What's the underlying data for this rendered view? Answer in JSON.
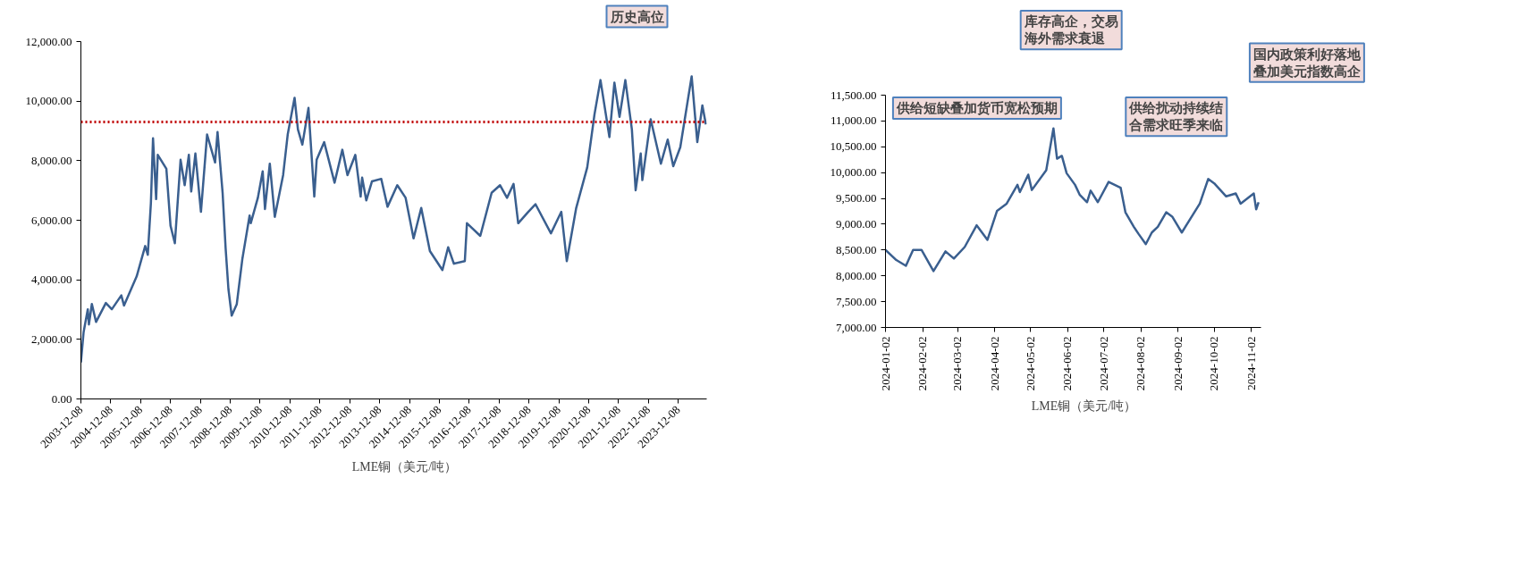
{
  "chart_data": [
    {
      "type": "line",
      "legend": "bottom",
      "grid": false,
      "line_style": "solid",
      "x": [
        "2003-12-08",
        "2004-01-10",
        "2004-03-01",
        "2004-03-15",
        "2004-04-20",
        "2004-06-10",
        "2004-10-08",
        "2004-12-20",
        "2005-04-15",
        "2005-05-18",
        "2005-10-20",
        "2006-02-01",
        "2006-03-05",
        "2006-04-12",
        "2006-05-08",
        "2006-06-15",
        "2006-07-05",
        "2006-10-18",
        "2006-12-08",
        "2007-01-30",
        "2007-04-10",
        "2007-05-30",
        "2007-07-20",
        "2007-08-18",
        "2007-10-08",
        "2007-12-15",
        "2008-02-28",
        "2008-06-05",
        "2008-07-05",
        "2008-09-05",
        "2008-10-12",
        "2008-11-15",
        "2008-12-25",
        "2009-02-25",
        "2009-05-05",
        "2009-08-01",
        "2009-08-15",
        "2009-11-10",
        "2010-01-08",
        "2010-02-05",
        "2010-04-05",
        "2010-06-05",
        "2010-09-15",
        "2010-11-10",
        "2011-02-02",
        "2011-03-15",
        "2011-05-08",
        "2011-07-22",
        "2011-10-01",
        "2011-10-30",
        "2012-01-30",
        "2012-06-05",
        "2012-09-08",
        "2012-11-10",
        "2013-02-14",
        "2013-04-20",
        "2013-05-08",
        "2013-06-28",
        "2013-09-05",
        "2013-12-28",
        "2014-03-15",
        "2014-07-12",
        "2014-10-22",
        "2015-01-27",
        "2015-05-01",
        "2015-08-15",
        "2016-01-15",
        "2016-03-25",
        "2016-06-03",
        "2016-10-15",
        "2016-11-10",
        "2017-04-22",
        "2017-09-08",
        "2017-12-20",
        "2018-03-15",
        "2018-06-03",
        "2018-07-30",
        "2018-11-30",
        "2019-02-26",
        "2019-09-03",
        "2020-01-08",
        "2020-03-15",
        "2020-07-08",
        "2020-11-20",
        "2021-02-17",
        "2021-05-01",
        "2021-08-18",
        "2021-10-18",
        "2021-12-20",
        "2022-03-01",
        "2022-05-20",
        "2022-07-05",
        "2022-09-05",
        "2022-09-25",
        "2023-01-05",
        "2023-05-10",
        "2023-08-01",
        "2023-10-08",
        "2024-01-02",
        "2024-05-20",
        "2024-07-28",
        "2024-09-28",
        "2024-11-10"
      ],
      "series": [
        {
          "name": "LME铜（美元/吨）",
          "color": "#3a5f8f",
          "values": [
            1224,
            2245,
            3010,
            2500,
            3190,
            2585,
            3222,
            3010,
            3477,
            3138,
            4115,
            5135,
            4840,
            6580,
            8750,
            6710,
            8196,
            7730,
            5816,
            5230,
            8030,
            7176,
            8196,
            6964,
            8240,
            6283,
            8878,
            7941,
            8963,
            6921,
            5051,
            3690,
            2798,
            3181,
            4711,
            6156,
            5900,
            6752,
            7645,
            6378,
            7900,
            6114,
            7517,
            8878,
            10110,
            9048,
            8538,
            9770,
            6794,
            8030,
            8622,
            7262,
            8367,
            7517,
            8196,
            6794,
            7432,
            6666,
            7304,
            7390,
            6454,
            7176,
            6752,
            5390,
            6411,
            4966,
            4328,
            5093,
            4541,
            4626,
            5900,
            5475,
            6921,
            7176,
            6752,
            7219,
            5900,
            6283,
            6539,
            5560,
            6283,
            4626,
            6411,
            7772,
            9558,
            10706,
            8793,
            10620,
            9473,
            10706,
            9048,
            7007,
            8240,
            7347,
            9388,
            7900,
            8707,
            7815,
            8452,
            10833,
            8622,
            9855,
            9218
          ]
        }
      ],
      "xlim": [
        "2003-12-08",
        "2024-11-20"
      ],
      "xticks": [
        "2003-12-08",
        "2004-12-08",
        "2005-12-08",
        "2006-12-08",
        "2007-12-08",
        "2008-12-08",
        "2009-12-08",
        "2010-12-08",
        "2011-12-08",
        "2012-12-08",
        "2013-12-08",
        "2014-12-08",
        "2015-12-08",
        "2016-12-08",
        "2017-12-08",
        "2018-12-08",
        "2019-12-08",
        "2020-12-08",
        "2021-12-08",
        "2022-12-08",
        "2023-12-08"
      ],
      "ylim": [
        0,
        12000
      ],
      "yticks": [
        {
          "value": 0,
          "label": "0.00"
        },
        {
          "value": 2000,
          "label": "2,000.00"
        },
        {
          "value": 4000,
          "label": "4,000.00"
        },
        {
          "value": 6000,
          "label": "6,000.00"
        },
        {
          "value": 8000,
          "label": "8,000.00"
        },
        {
          "value": 10000,
          "label": "10,000.00"
        },
        {
          "value": 12000,
          "label": "12,000.00"
        }
      ],
      "ref_lines": [
        {
          "axis": "y",
          "value": 9300,
          "color": "#c00000",
          "line_style": "dotted"
        }
      ],
      "annotations": [
        "历史高位"
      ]
    },
    {
      "type": "line",
      "legend": "bottom",
      "grid": false,
      "line_style": "solid",
      "x": [
        "2024-01-02",
        "2024-01-11",
        "2024-01-19",
        "2024-01-25",
        "2024-02-01",
        "2024-02-11",
        "2024-02-21",
        "2024-02-28",
        "2024-03-08",
        "2024-03-18",
        "2024-03-27",
        "2024-04-04",
        "2024-04-12",
        "2024-04-21",
        "2024-04-23",
        "2024-04-30",
        "2024-05-03",
        "2024-05-15",
        "2024-05-21",
        "2024-05-24",
        "2024-05-28",
        "2024-06-01",
        "2024-06-08",
        "2024-06-12",
        "2024-06-18",
        "2024-06-21",
        "2024-06-27",
        "2024-07-06",
        "2024-07-16",
        "2024-07-20",
        "2024-07-27",
        "2024-07-31",
        "2024-08-06",
        "2024-08-11",
        "2024-08-16",
        "2024-08-23",
        "2024-08-28",
        "2024-09-05",
        "2024-09-20",
        "2024-09-27",
        "2024-10-02",
        "2024-10-12",
        "2024-10-20",
        "2024-10-24",
        "2024-11-04",
        "2024-11-06",
        "2024-11-08"
      ],
      "series": [
        {
          "name": "LME铜（美元/吨）",
          "color": "#3a5f8f",
          "values": [
            8502,
            8306,
            8194,
            8502,
            8502,
            8093,
            8474,
            8334,
            8558,
            8979,
            8698,
            9259,
            9399,
            9763,
            9623,
            9960,
            9663,
            10045,
            10857,
            10269,
            10324,
            9988,
            9763,
            9567,
            9427,
            9651,
            9427,
            9820,
            9707,
            9231,
            8950,
            8811,
            8614,
            8839,
            8950,
            9231,
            9147,
            8839,
            9399,
            9876,
            9792,
            9539,
            9595,
            9399,
            9595,
            9287,
            9427
          ]
        }
      ],
      "xlim": [
        "2024-01-02",
        "2024-11-10"
      ],
      "xticks": [
        "2024-01-02",
        "2024-02-02",
        "2024-03-02",
        "2024-04-02",
        "2024-05-02",
        "2024-06-02",
        "2024-07-02",
        "2024-08-02",
        "2024-09-02",
        "2024-10-02",
        "2024-11-02"
      ],
      "ylim": [
        7000,
        11500
      ],
      "yticks": [
        {
          "value": 7000,
          "label": "7,000.00"
        },
        {
          "value": 7500,
          "label": "7,500.00"
        },
        {
          "value": 8000,
          "label": "8,000.00"
        },
        {
          "value": 8500,
          "label": "8,500.00"
        },
        {
          "value": 9000,
          "label": "9,000.00"
        },
        {
          "value": 9500,
          "label": "9,500.00"
        },
        {
          "value": 10000,
          "label": "10,000.00"
        },
        {
          "value": 10500,
          "label": "10,500.00"
        },
        {
          "value": 11000,
          "label": "11,000.00"
        },
        {
          "value": 11500,
          "label": "11,500.00"
        }
      ],
      "annotations": [
        "供给短缺叠加货币宽松预期",
        "库存高企，交易海外需求衰退",
        "供给扰动持续结合需求旺季来临",
        "国内政策利好落地叠加美元指数高企"
      ]
    }
  ]
}
